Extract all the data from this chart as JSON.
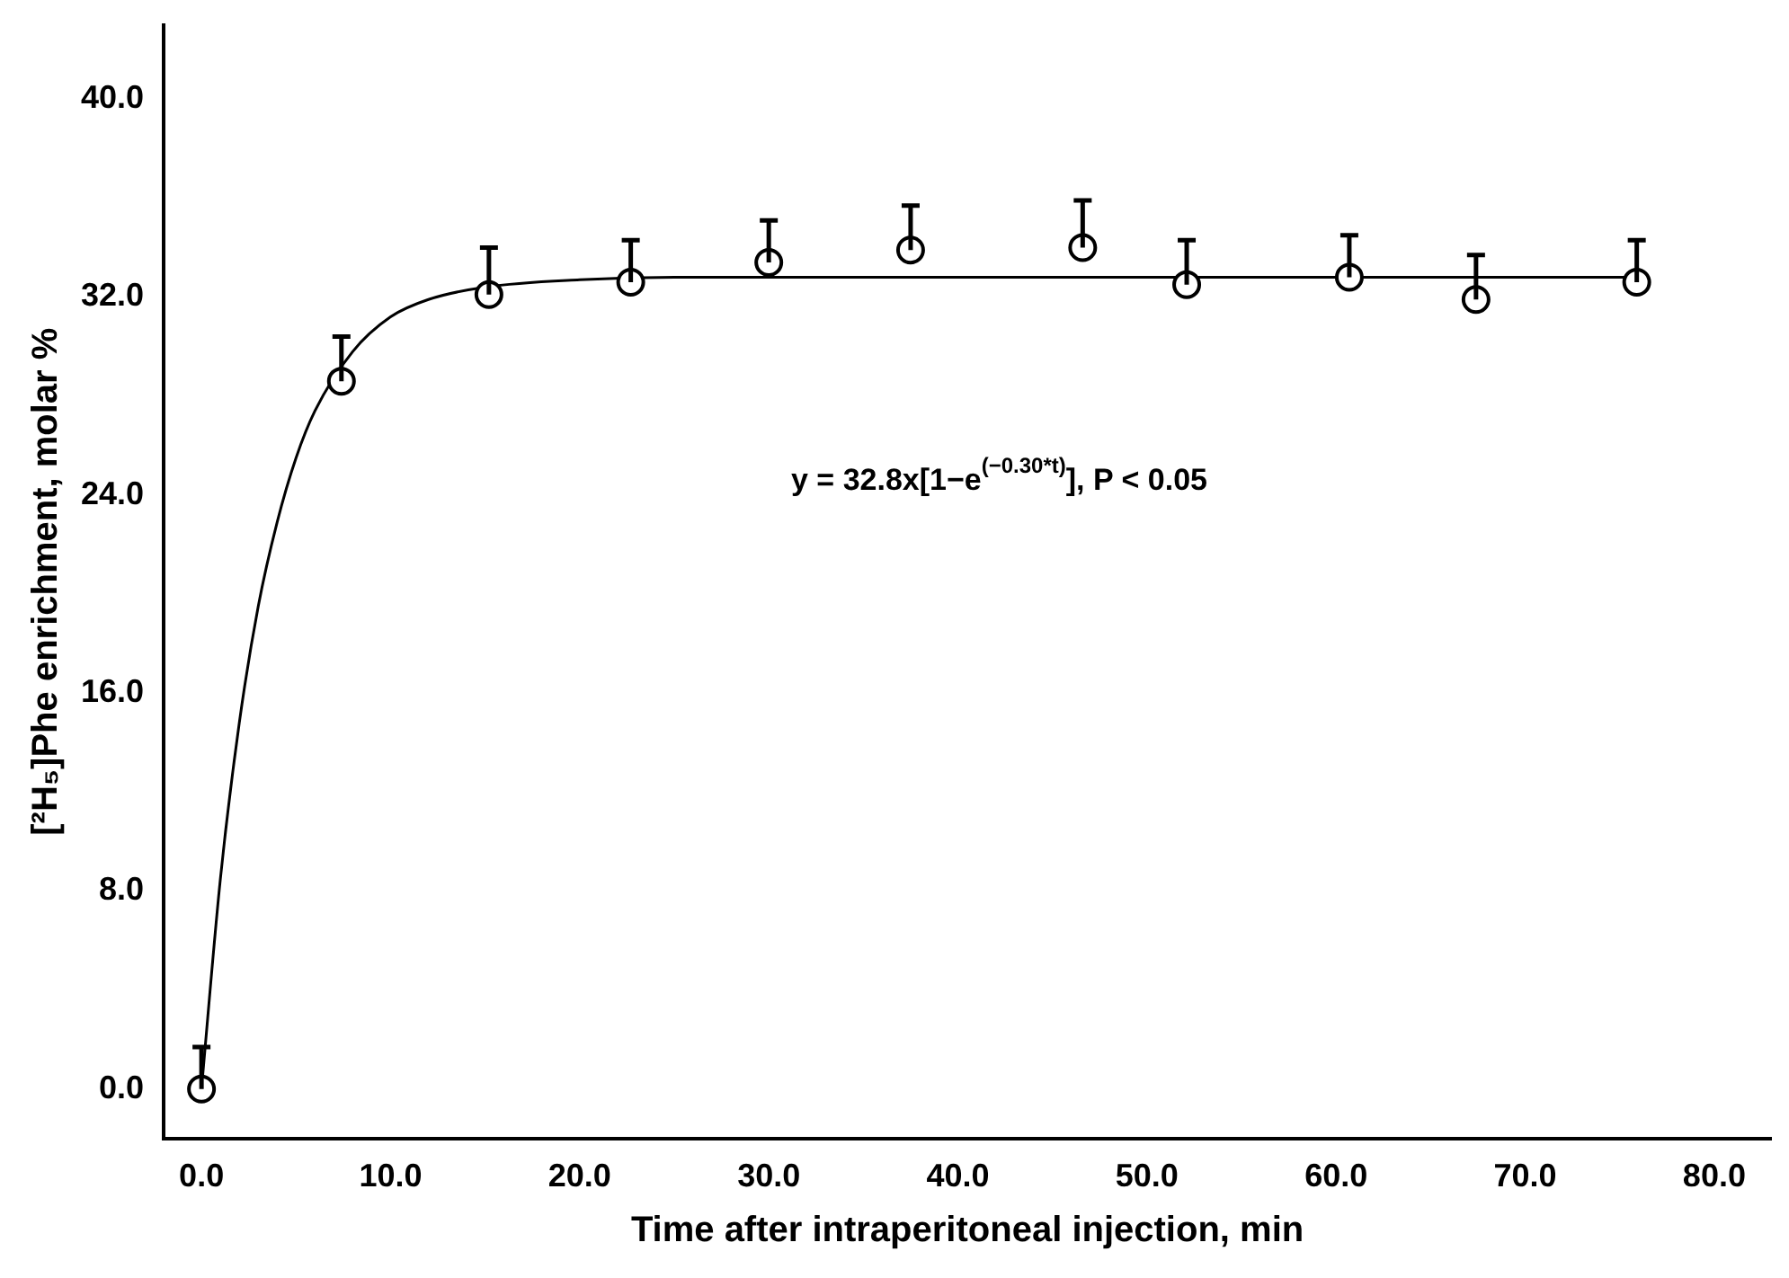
{
  "chart_data": {
    "type": "scatter",
    "xlabel": "Time after intraperitoneal injection, min",
    "ylabel": "[²H₅]Phe enrichment, molar %",
    "xlim": [
      -2,
      83
    ],
    "ylim": [
      -2,
      43
    ],
    "xticks": [
      {
        "value": 0,
        "label": "0.0"
      },
      {
        "value": 10,
        "label": "10.0"
      },
      {
        "value": 20,
        "label": "20.0"
      },
      {
        "value": 30,
        "label": "30.0"
      },
      {
        "value": 40,
        "label": "40.0"
      },
      {
        "value": 50,
        "label": "50.0"
      },
      {
        "value": 60,
        "label": "60.0"
      },
      {
        "value": 70,
        "label": "70.0"
      },
      {
        "value": 80,
        "label": "80.0"
      }
    ],
    "yticks": [
      {
        "value": 0,
        "label": "0.0"
      },
      {
        "value": 8,
        "label": "8.0"
      },
      {
        "value": 16,
        "label": "16.0"
      },
      {
        "value": 24,
        "label": "24.0"
      },
      {
        "value": 32,
        "label": "32.0"
      },
      {
        "value": 40,
        "label": "40.0"
      }
    ],
    "grid": false,
    "legend": false,
    "marker": "circle",
    "series": [
      {
        "color": "#000000",
        "x": [
          0,
          7.4,
          15.2,
          22.7,
          30.0,
          37.5,
          46.6,
          52.1,
          60.7,
          67.4,
          75.9
        ],
        "values": [
          0,
          28.6,
          32.1,
          32.6,
          33.4,
          33.9,
          34.0,
          32.5,
          32.8,
          31.9,
          32.6
        ],
        "errors": [
          [
            0,
            1.7
          ],
          [
            28.6,
            30.4
          ],
          [
            32.1,
            34.0
          ],
          [
            32.6,
            34.3
          ],
          [
            33.4,
            35.1
          ],
          [
            33.9,
            35.7
          ],
          [
            34.0,
            35.9
          ],
          [
            32.5,
            34.3
          ],
          [
            32.8,
            34.5
          ],
          [
            31.9,
            33.7
          ],
          [
            32.6,
            34.3
          ]
        ]
      },
      {
        "type": "line",
        "color": "#000000",
        "marker": "none",
        "x": [
          0,
          1,
          2,
          3,
          4,
          5,
          6,
          8,
          10,
          12,
          15,
          20,
          25,
          76
        ],
        "values": [
          0,
          8.5,
          14.8,
          19.5,
          22.9,
          25.5,
          27.4,
          29.8,
          31.2,
          31.9,
          32.4,
          32.7,
          32.8,
          32.8
        ]
      }
    ],
    "annotations": [
      "y = 32.8x[1−e$^{(−0.30*t)}$], P < 0.05"
    ]
  }
}
